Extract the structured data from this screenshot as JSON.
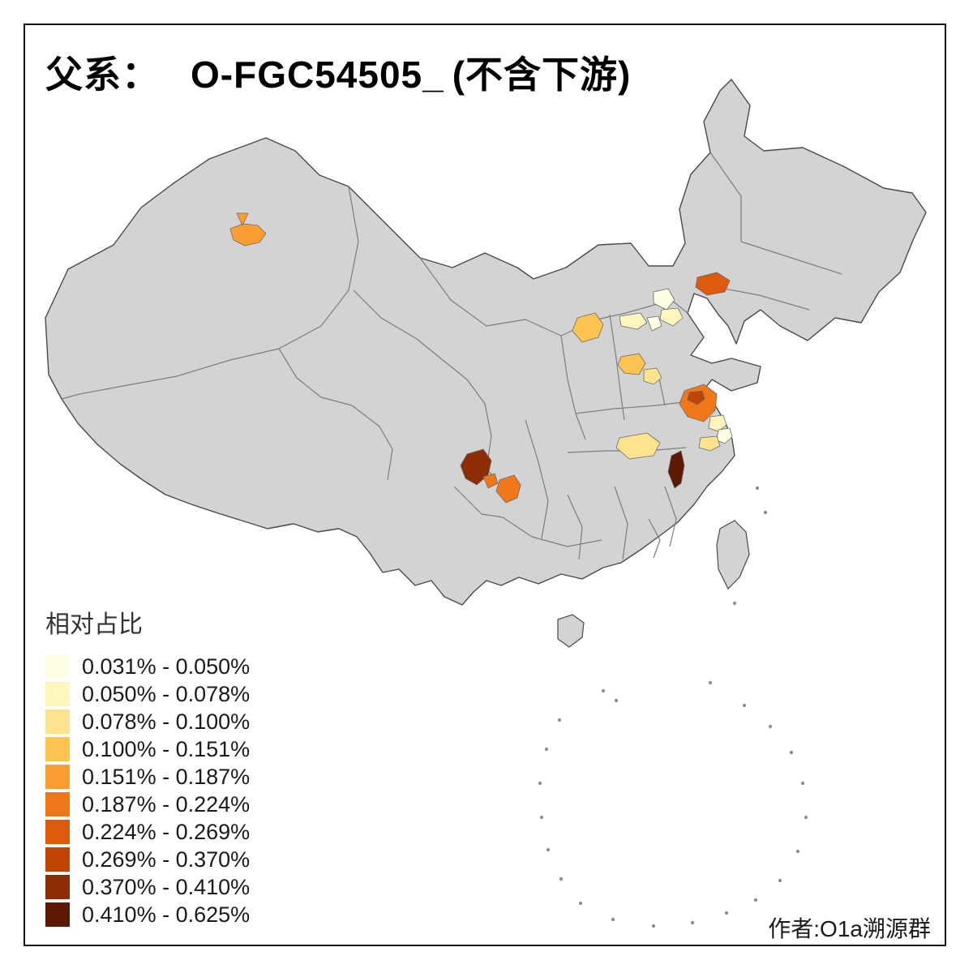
{
  "title": {
    "prefix": "父系：",
    "haplogroup": "O-FGC54505_",
    "suffix": "(不含下游)"
  },
  "legend": {
    "title": "相对占比",
    "bins": [
      {
        "label": "0.031% - 0.050%",
        "color": "#FFFFE3"
      },
      {
        "label": "0.050% - 0.078%",
        "color": "#FFF6BE"
      },
      {
        "label": "0.078% - 0.100%",
        "color": "#FEE38F"
      },
      {
        "label": "0.100% - 0.151%",
        "color": "#FEC44F"
      },
      {
        "label": "0.151% - 0.187%",
        "color": "#FB9D32"
      },
      {
        "label": "0.187% - 0.224%",
        "color": "#F07818"
      },
      {
        "label": "0.224% - 0.269%",
        "color": "#DE5A0C"
      },
      {
        "label": "0.269% - 0.370%",
        "color": "#C14402"
      },
      {
        "label": "0.370% - 0.410%",
        "color": "#8C2D04"
      },
      {
        "label": "0.410% - 0.625%",
        "color": "#5C1A02"
      }
    ]
  },
  "attribution": "作者:O1a溯源群",
  "map": {
    "land_color": "#D3D3D3",
    "boundary_color": "#4A4A4A",
    "province_line_color": "#7D7D7D",
    "background_color": "#FFFFFF",
    "regions": [
      {
        "color": "#FB9D32"
      },
      {
        "color": "#DE5A0C"
      },
      {
        "color": "#FFFFE3"
      },
      {
        "color": "#FFF6BE"
      },
      {
        "color": "#FEC44F"
      },
      {
        "color": "#FFF6BE"
      },
      {
        "color": "#FFFFE3"
      },
      {
        "color": "#FEC44F"
      },
      {
        "color": "#FEE38F"
      },
      {
        "color": "#FEE38F"
      },
      {
        "color": "#F07818"
      },
      {
        "color": "#C14402"
      },
      {
        "color": "#FFF6BE"
      },
      {
        "color": "#FFFFE3"
      },
      {
        "color": "#FEE38F"
      },
      {
        "color": "#5C1A02"
      },
      {
        "color": "#8C2D04"
      },
      {
        "color": "#F07818"
      },
      {
        "color": "#F07818"
      }
    ]
  }
}
